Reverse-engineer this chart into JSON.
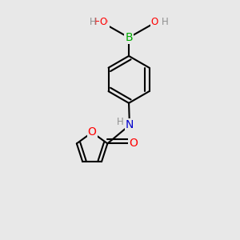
{
  "background_color": "#e8e8e8",
  "atom_colors": {
    "C": "#000000",
    "H": "#909090",
    "O": "#ff0000",
    "N": "#0000cc",
    "B": "#00aa00"
  },
  "bond_color": "#000000",
  "bond_width": 1.5
}
